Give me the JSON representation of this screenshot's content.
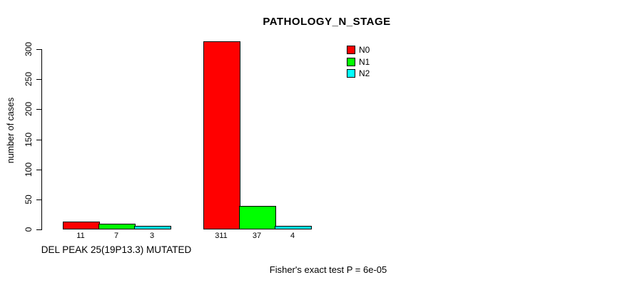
{
  "title": "PATHOLOGY_N_STAGE",
  "y_axis_label": "number of cases",
  "group_axis_label": "DEL PEAK 25(19P13.3) MUTATED",
  "footnote": "Fisher's exact test P = 6e-05",
  "legend": [
    {
      "label": "N0",
      "color": "#ff0000"
    },
    {
      "label": "N1",
      "color": "#00ff00"
    },
    {
      "label": "N2",
      "color": "#00ffff"
    }
  ],
  "chart_data": {
    "type": "bar",
    "title": "PATHOLOGY_N_STAGE",
    "ylabel": "number of cases",
    "xlabel": "",
    "ylim": [
      0,
      300
    ],
    "yticks": [
      0,
      50,
      100,
      150,
      200,
      250,
      300
    ],
    "grid": false,
    "legend_position": "top-right",
    "series_names": [
      "N0",
      "N1",
      "N2"
    ],
    "colors": [
      "#ff0000",
      "#00ff00",
      "#00ffff"
    ],
    "groups": [
      {
        "label": "DEL PEAK 25(19P13.3) MUTATED",
        "values": [
          11,
          7,
          3
        ]
      },
      {
        "label": "",
        "values": [
          311,
          37,
          4
        ]
      }
    ],
    "bar_value_labels": [
      [
        "11",
        "7",
        "3"
      ],
      [
        "311",
        "37",
        "4"
      ]
    ],
    "annotation": "Fisher's exact test P = 6e-05"
  }
}
